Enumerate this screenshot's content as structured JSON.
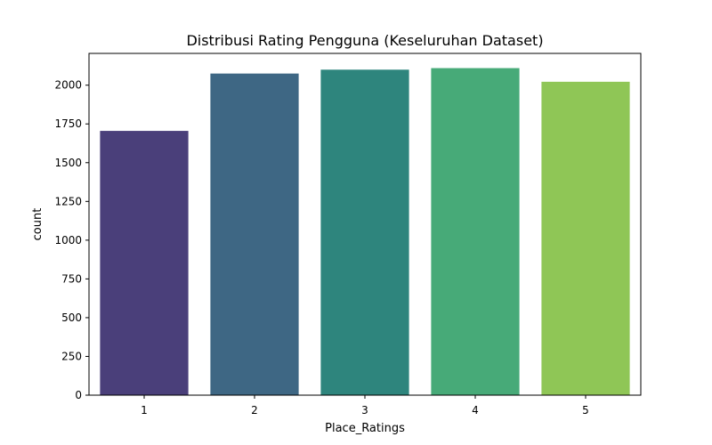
{
  "chart_data": {
    "type": "bar",
    "title": "Distribusi Rating Pengguna (Keseluruhan Dataset)",
    "xlabel": "Place_Ratings",
    "ylabel": "count",
    "categories": [
      "1",
      "2",
      "3",
      "4",
      "5"
    ],
    "values": [
      1705,
      2075,
      2100,
      2110,
      2022
    ],
    "colors": [
      "#4a3f7a",
      "#3e6784",
      "#2e857d",
      "#47aa78",
      "#8fc656"
    ],
    "ylim": [
      0,
      2205
    ],
    "yticks": [
      0,
      250,
      500,
      750,
      1000,
      1250,
      1500,
      1750,
      2000
    ],
    "grid": false,
    "legend": "none"
  }
}
